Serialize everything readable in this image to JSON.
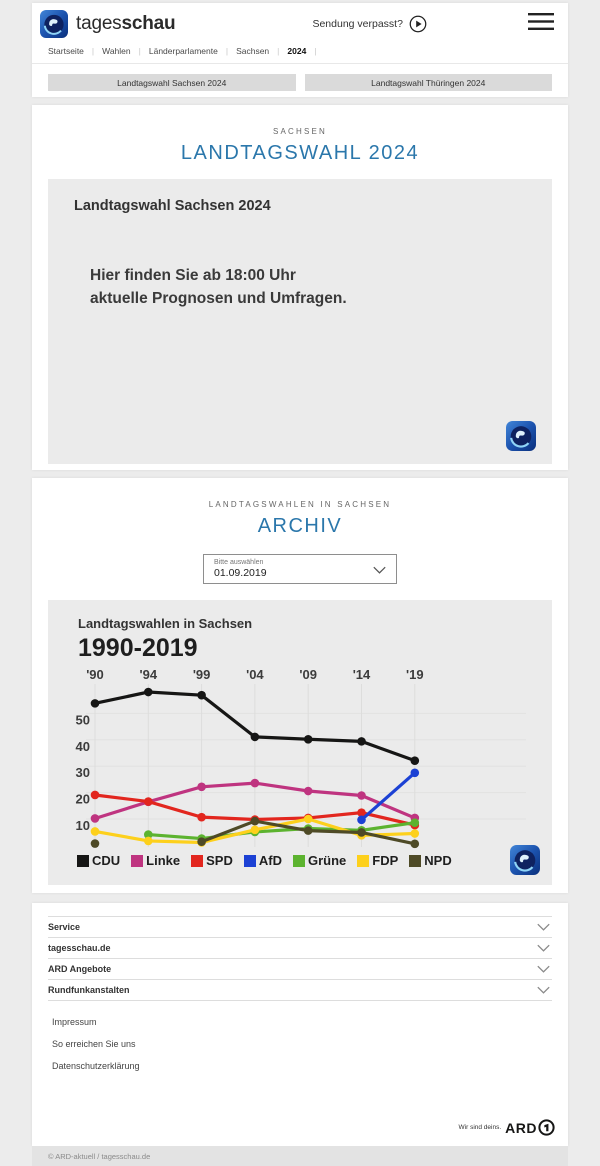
{
  "colors": {
    "headline_blue": "#2b77ab",
    "card_background": "#ebebeb",
    "brand_logo_blue": "#0a2f7c"
  },
  "icons": {
    "play": "▶",
    "menu": "☰",
    "chevron_down": "⌄"
  },
  "header": {
    "brand": {
      "name_regular": "tages",
      "name_bold": "schau"
    },
    "missed_show_label": "Sendung verpasst?",
    "breadcrumb": [
      "Startseite",
      "Wahlen",
      "Länderparlamente",
      "Sachsen",
      "2024"
    ],
    "quick_links": [
      "Landtagswahl Sachsen 2024",
      "Landtagswahl Thüringen 2024"
    ]
  },
  "hero": {
    "kicker": "SACHSEN",
    "title": "LANDTAGSWAHL 2024",
    "card": {
      "title": "Landtagswahl Sachsen 2024",
      "message_line1": "Hier finden Sie ab 18:00 Uhr",
      "message_line2": "aktuelle Prognosen und Umfragen."
    }
  },
  "archive": {
    "kicker": "LANDTAGSWAHLEN IN SACHSEN",
    "title": "ARCHIV",
    "select": {
      "label": "Bitte auswählen",
      "value": "01.09.2019"
    }
  },
  "chart_data": {
    "type": "line",
    "subtitle": "Landtagswahlen in Sachsen",
    "title": "1990-2019",
    "unit": "percent",
    "grid": true,
    "legend_position": "bottom",
    "x_tick_labels": [
      "'90",
      "'94",
      "'99",
      "'04",
      "'09",
      "'14",
      "'19"
    ],
    "years": [
      1990,
      1994,
      1999,
      2004,
      2009,
      2014,
      2019
    ],
    "y_ticks": [
      10,
      20,
      30,
      40,
      50
    ],
    "ylim": [
      0,
      62
    ],
    "series": [
      {
        "name": "CDU",
        "color": "#161615",
        "values": [
          53.8,
          58.1,
          56.9,
          41.1,
          40.2,
          39.4,
          32.1
        ]
      },
      {
        "name": "Linke",
        "color": "#bf3480",
        "values": [
          10.2,
          16.5,
          22.2,
          23.6,
          20.6,
          18.9,
          10.4
        ]
      },
      {
        "name": "SPD",
        "color": "#e2261e",
        "values": [
          19.1,
          16.6,
          10.7,
          9.8,
          10.4,
          12.4,
          7.7
        ]
      },
      {
        "name": "AfD",
        "color": "#1c41d4",
        "values": [
          null,
          null,
          null,
          null,
          null,
          9.7,
          27.5
        ]
      },
      {
        "name": "Grüne",
        "color": "#5cb32f",
        "values": [
          null,
          4.1,
          2.6,
          5.1,
          6.4,
          5.7,
          8.6
        ]
      },
      {
        "name": "FDP",
        "color": "#fdd01c",
        "values": [
          5.3,
          1.7,
          1.1,
          5.9,
          10.0,
          3.8,
          4.5
        ]
      },
      {
        "name": "NPD",
        "color": "#4e4a26",
        "values": [
          0.7,
          null,
          1.4,
          9.2,
          5.6,
          4.9,
          0.6
        ]
      }
    ]
  },
  "footer": {
    "accordion": [
      "Service",
      "tagesschau.de",
      "ARD Angebote",
      "Rundfunkanstalten"
    ],
    "links": [
      "Impressum",
      "So erreichen Sie uns",
      "Datenschutzerklärung"
    ],
    "ard_claim": "Wir sind deins.",
    "ard_brand": "ARD",
    "copyright": "© ARD-aktuell / tagesschau.de"
  }
}
